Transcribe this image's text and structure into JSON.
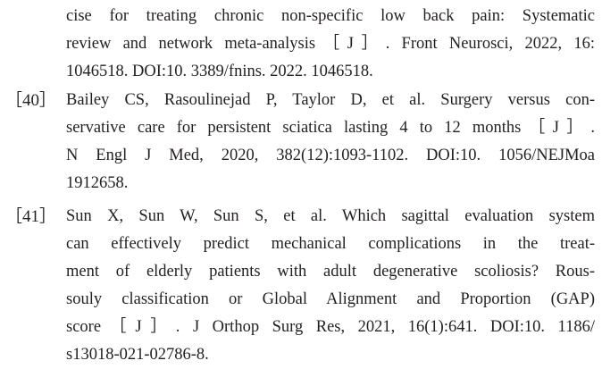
{
  "references": [
    {
      "lines": [
        "cise for treating chronic non-specific low back pain: Systematic",
        "review and network meta-analysis［J］. Front Neurosci, 2022, 16:",
        "1046518. DOI:10. 3389/fnins. 2022. 1046518."
      ]
    },
    {
      "label": "［40］",
      "lines": [
        "Bailey CS, Rasoulinejad P, Taylor D, et al. Surgery versus con-",
        "servative care for persistent sciatica lasting 4 to 12 months［J］.",
        "N Engl J Med, 2020, 382(12):1093-1102. DOI:10. 1056/NEJMoa",
        "1912658."
      ]
    },
    {
      "label": "［41］",
      "lines": [
        "Sun X, Sun W, Sun S, et al. Which sagittal evaluation system",
        "can effectively predict mechanical complications in the treat-",
        "ment of elderly patients with adult degenerative scoliosis? Rous-",
        "souly classification or Global Alignment and Proportion (GAP)",
        "score［J］. J Orthop Surg Res, 2021, 16(1):641. DOI:10. 1186/",
        "s13018-021-02786-8."
      ]
    }
  ]
}
